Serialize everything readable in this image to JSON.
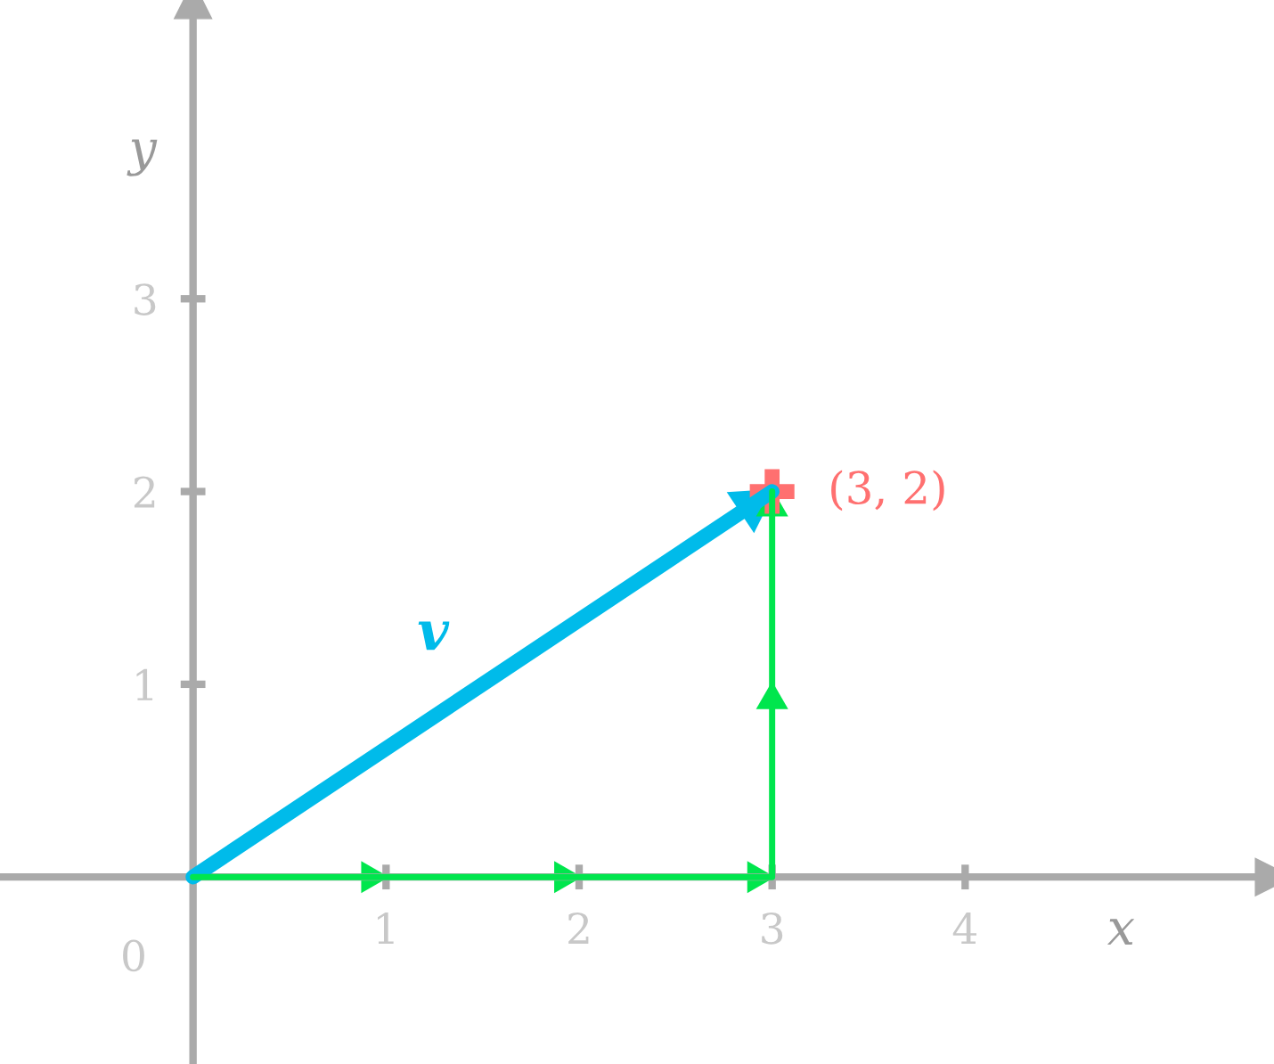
{
  "chart_data": {
    "type": "line",
    "xlim": [
      -1,
      5.6
    ],
    "ylim": [
      -0.97,
      4.55
    ],
    "xticks": [
      1,
      2,
      3,
      4
    ],
    "yticks": [
      1,
      2,
      3
    ],
    "xlabel": "x",
    "ylabel": "y",
    "grid": false,
    "legend": false,
    "series": [
      {
        "name": "v",
        "color": "#00bbea",
        "x": [
          0,
          3
        ],
        "values": [
          0,
          2
        ]
      },
      {
        "color": "#00e64d",
        "x": [
          0,
          1,
          2,
          3,
          3,
          3
        ],
        "values": [
          0,
          0,
          0,
          0,
          1,
          2
        ]
      },
      {
        "type": "scatter",
        "color": "#ff7070",
        "marker": "cross",
        "x": [
          3
        ],
        "values": [
          2
        ]
      }
    ],
    "annotations": [
      "0",
      {
        "text": "(3, 2)",
        "x": 3,
        "y": 2
      }
    ]
  }
}
